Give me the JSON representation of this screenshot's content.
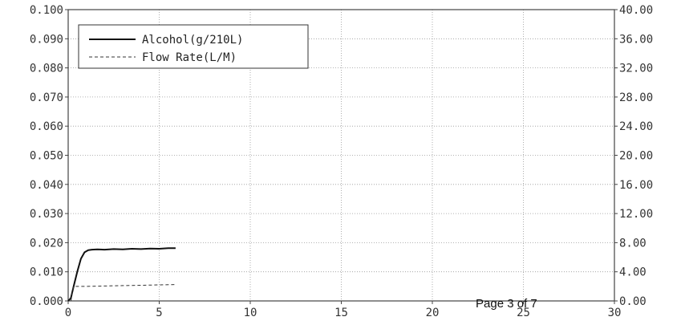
{
  "chart_data": {
    "type": "line",
    "xlim": [
      0,
      30
    ],
    "x_ticks": [
      "0",
      "5",
      "10",
      "15",
      "20",
      "25",
      "30"
    ],
    "y_left": {
      "lim": [
        0,
        0.1
      ],
      "ticks": [
        "0.000",
        "0.010",
        "0.020",
        "0.030",
        "0.040",
        "0.050",
        "0.060",
        "0.070",
        "0.080",
        "0.090",
        "0.100"
      ]
    },
    "y_right": {
      "lim": [
        0,
        40
      ],
      "ticks": [
        "0.00",
        "4.00",
        "8.00",
        "12.00",
        "16.00",
        "20.00",
        "24.00",
        "28.00",
        "32.00",
        "36.00",
        "40.00"
      ]
    },
    "grid": true,
    "legend_position": "top-left",
    "series": [
      {
        "name": "Alcohol(g/210L)",
        "axis": "left",
        "style": "solid",
        "x": [
          0,
          0.15,
          0.3,
          0.5,
          0.7,
          0.9,
          1.1,
          1.3,
          1.6,
          2.0,
          2.5,
          3.0,
          3.5,
          4.0,
          4.5,
          5.0,
          5.5,
          5.9
        ],
        "y": [
          0.0,
          0.001,
          0.005,
          0.01,
          0.0145,
          0.0167,
          0.0174,
          0.0176,
          0.0177,
          0.0176,
          0.0178,
          0.0177,
          0.0179,
          0.0178,
          0.018,
          0.0179,
          0.0181,
          0.0181
        ]
      },
      {
        "name": "Flow Rate(L/M)",
        "axis": "right",
        "style": "dashed",
        "x": [
          0.15,
          0.3,
          0.5,
          1.0,
          2.0,
          3.0,
          4.0,
          5.0,
          5.9
        ],
        "y": [
          0.0,
          2.0,
          2.0,
          2.0,
          2.05,
          2.1,
          2.15,
          2.2,
          2.25
        ]
      }
    ]
  },
  "footer": {
    "page_note": "Page 3 of 7"
  }
}
